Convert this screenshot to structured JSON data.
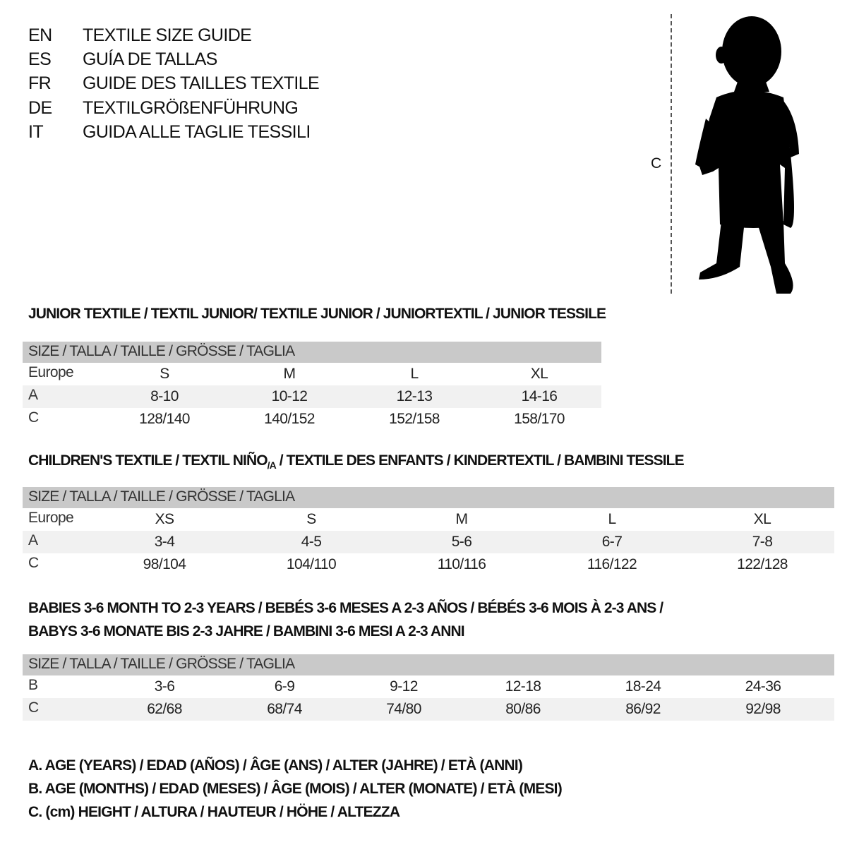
{
  "titles": [
    {
      "code": "EN",
      "text": "TEXTILE SIZE GUIDE"
    },
    {
      "code": "ES",
      "text": "GUÍA DE TALLAS"
    },
    {
      "code": "FR",
      "text": "GUIDE DES TAILLES TEXTILE"
    },
    {
      "code": "DE",
      "text": "TEXTILGRÖßENFÜHRUNG"
    },
    {
      "code": "IT",
      "text": "GUIDA ALLE TAGLIE TESSILI"
    }
  ],
  "figure": {
    "measure_label": "C"
  },
  "header_label": "SIZE / TALLA / TAILLE / GRÖSSE / TAGLIA",
  "junior": {
    "title": "JUNIOR TEXTILE / TEXTIL JUNIOR/ TEXTILE JUNIOR / JUNIORTEXTIL / JUNIOR TESSILE",
    "rows": [
      {
        "label": "Europe",
        "values": [
          "S",
          "M",
          "L",
          "XL"
        ]
      },
      {
        "label": "A",
        "values": [
          "8-10",
          "10-12",
          "12-13",
          "14-16"
        ]
      },
      {
        "label": "C",
        "values": [
          "128/140",
          "140/152",
          "152/158",
          "158/170"
        ]
      }
    ]
  },
  "children": {
    "title_a": "CHILDREN'S TEXTILE / TEXTIL NIÑO",
    "title_sub": "/A",
    "title_b": " / TEXTILE DES ENFANTS / KINDERTEXTIL / BAMBINI TESSILE",
    "rows": [
      {
        "label": "Europe",
        "values": [
          "XS",
          "S",
          "M",
          "L",
          "XL"
        ]
      },
      {
        "label": "A",
        "values": [
          "3-4",
          "4-5",
          "5-6",
          "6-7",
          "7-8"
        ]
      },
      {
        "label": "C",
        "values": [
          "98/104",
          "104/110",
          "110/116",
          "116/122",
          "122/128"
        ]
      }
    ]
  },
  "babies": {
    "title_line1": "BABIES 3-6 MONTH TO 2-3 YEARS / BEBÉS 3-6 MESES A 2-3 AÑOS / BÉBÉS 3-6 MOIS À 2-3 ANS /",
    "title_line2": "BABYS 3-6 MONATE BIS 2-3 JAHRE / BAMBINI 3-6 MESI A 2-3 ANNI",
    "rows": [
      {
        "label": "B",
        "values": [
          "3-6",
          "6-9",
          "9-12",
          "12-18",
          "18-24",
          "24-36"
        ]
      },
      {
        "label": "C",
        "values": [
          "62/68",
          "68/74",
          "74/80",
          "80/86",
          "86/92",
          "92/98"
        ]
      }
    ]
  },
  "legend": [
    "A. AGE (YEARS) / EDAD (AÑOS) / ÂGE (ANS) / ALTER (JAHRE) / ETÀ (ANNI)",
    "B. AGE (MONTHS) / EDAD (MESES) / ÂGE (MOIS) / ALTER (MONATE) / ETÀ (MESI)",
    "C. (cm) HEIGHT / ALTURA / HAUTEUR / HÖHE / ALTEZZA"
  ]
}
